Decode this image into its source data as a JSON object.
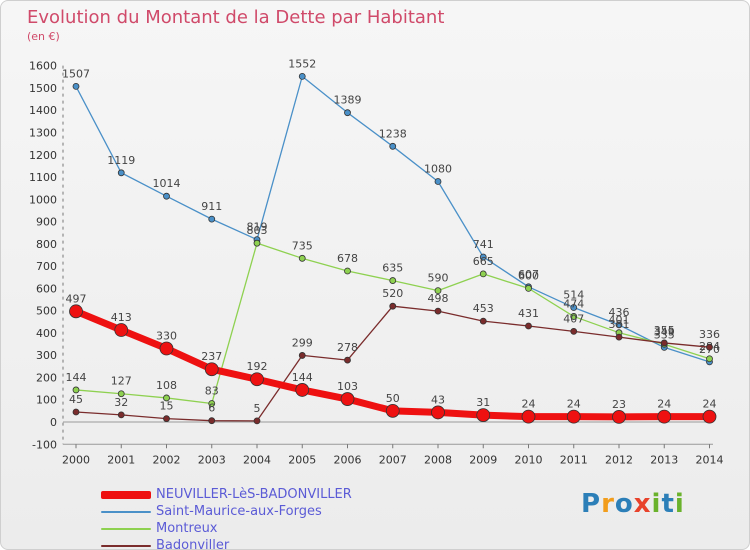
{
  "title": "Evolution du Montant de la Dette par Habitant",
  "unit": "(en €)",
  "logo": {
    "letters": [
      "P",
      "r",
      "o",
      "x",
      "i",
      "t",
      "i"
    ],
    "colors": [
      "#2c7fb8",
      "#f29d1c",
      "#2c7fb8",
      "#e8422b",
      "#6ab22c",
      "#2c7fb8",
      "#6ab22c"
    ]
  },
  "chart_data": {
    "type": "line",
    "title": "Evolution du Montant de la Dette par Habitant",
    "ylabel": "(en €)",
    "x": [
      "2000",
      "2001",
      "2002",
      "2003",
      "2004",
      "2005",
      "2006",
      "2007",
      "2008",
      "2009",
      "2010",
      "2011",
      "2012",
      "2013",
      "2014"
    ],
    "ylim": [
      -100,
      1600
    ],
    "yticks": [
      -100,
      0,
      100,
      200,
      300,
      400,
      500,
      600,
      700,
      800,
      900,
      1000,
      1100,
      1200,
      1300,
      1400,
      1500,
      1600
    ],
    "grid": false,
    "legend_position": "bottom-left",
    "series": [
      {
        "name": "Saint-Maurice-aux-Forges",
        "color": "#4a90c8",
        "width": 1.3,
        "marker_r": 3,
        "values": [
          1507,
          1119,
          1014,
          911,
          819,
          1552,
          1389,
          1238,
          1080,
          741,
          607,
          514,
          436,
          335,
          270
        ],
        "labels": [
          "1507",
          "1119",
          "1014",
          "911",
          "819",
          "1552",
          "1389",
          "1238",
          "1080",
          "741",
          "607",
          "514",
          "436",
          "335",
          "270"
        ]
      },
      {
        "name": "Montreux",
        "color": "#8ed150",
        "width": 1.3,
        "marker_r": 3,
        "values": [
          144,
          127,
          108,
          83,
          803,
          735,
          678,
          635,
          590,
          665,
          600,
          474,
          401,
          349,
          284
        ],
        "labels": [
          "144",
          "127",
          "108",
          "83",
          "803",
          "735",
          "678",
          "635",
          "590",
          "665",
          "600",
          "474",
          "401",
          "349",
          "284"
        ]
      },
      {
        "name": "Badonviller",
        "color": "#7a2c2c",
        "width": 1.3,
        "marker_r": 3,
        "values": [
          45,
          32,
          15,
          6,
          5,
          299,
          278,
          520,
          498,
          453,
          431,
          407,
          381,
          355,
          336
        ],
        "labels": [
          "45",
          "32",
          "15",
          "6",
          "5",
          "299",
          "278",
          "520",
          "498",
          "453",
          "431",
          "407",
          "381",
          "355",
          "336"
        ]
      },
      {
        "name": "NEUVILLER-LèS-BADONVILLER",
        "color": "#ee1111",
        "width": 7,
        "marker_r": 6.5,
        "values": [
          497,
          413,
          330,
          237,
          192,
          144,
          103,
          50,
          43,
          31,
          24,
          24,
          23,
          24,
          24
        ],
        "labels": [
          "497",
          "413",
          "330",
          "237",
          "192",
          "144",
          "103",
          "50",
          "43",
          "31",
          "24",
          "24",
          "23",
          "24",
          "24"
        ]
      }
    ],
    "legend": [
      {
        "name": "NEUVILLER-LèS-BADONVILLER",
        "color": "#ee1111",
        "thickness": 8
      },
      {
        "name": "Saint-Maurice-aux-Forges",
        "color": "#4a90c8",
        "thickness": 2
      },
      {
        "name": "Montreux",
        "color": "#8ed150",
        "thickness": 2
      },
      {
        "name": "Badonviller",
        "color": "#7a2c2c",
        "thickness": 2
      }
    ]
  }
}
